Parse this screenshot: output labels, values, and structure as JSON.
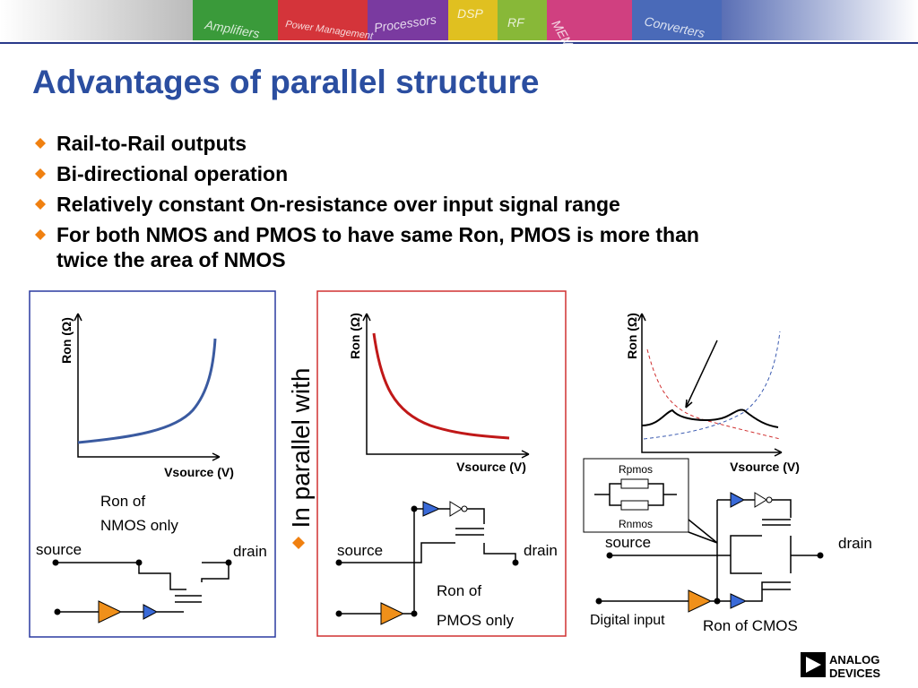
{
  "header": {
    "banner": [
      "Amplifiers",
      "Power Management",
      "Processors",
      "DSP",
      "RF",
      "MEMS",
      "Converters"
    ],
    "title": "Advantages of parallel structure"
  },
  "bullets": [
    "Rail-to-Rail outputs",
    "Bi-directional operation",
    "Relatively constant On-resistance over input signal range",
    "For both NMOS and PMOS to have same Ron, PMOS is more than",
    "twice the area of NMOS"
  ],
  "panels": [
    {
      "y_label": "Ron (Ω)",
      "x_label": "Vsource (V)",
      "caption": [
        "Ron of",
        "NMOS only"
      ],
      "source": "source",
      "drain": "drain"
    },
    {
      "y_label": "Ron (Ω)",
      "x_label": "Vsource (V)",
      "caption": [
        "Ron of",
        "PMOS only"
      ],
      "source": "source",
      "drain": "drain"
    },
    {
      "y_label": "Ron (Ω)",
      "x_label": "Vsource (V)",
      "inset": [
        "Rpmos",
        "Rnmos"
      ],
      "source": "source",
      "drain": "drain",
      "input": "Digital input",
      "caption": [
        "Ron of CMOS"
      ]
    }
  ],
  "connector": "In parallel with",
  "logo": [
    "ANALOG",
    "DEVICES"
  ]
}
